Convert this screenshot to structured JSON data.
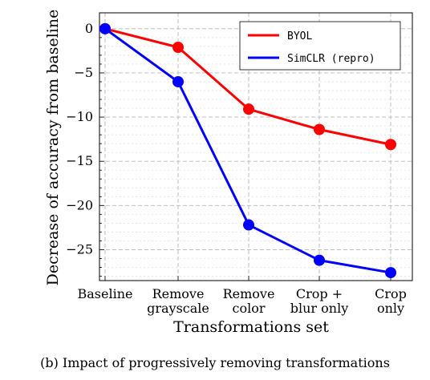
{
  "chart_data": {
    "type": "line",
    "categories": [
      "Baseline",
      "Remove grayscale",
      "Remove color",
      "Crop + blur only",
      "Crop only"
    ],
    "category_lines": [
      [
        "Baseline"
      ],
      [
        "Remove",
        "grayscale"
      ],
      [
        "Remove",
        "color"
      ],
      [
        "Crop +",
        "blur only"
      ],
      [
        "Crop",
        "only"
      ]
    ],
    "series": [
      {
        "name": "BYOL",
        "values": [
          0,
          -2.1,
          -9.1,
          -11.4,
          -13.1
        ],
        "color": "#ff0000"
      },
      {
        "name": "SimCLR (repro)",
        "values": [
          0,
          -6.0,
          -22.2,
          -26.2,
          -27.6
        ],
        "color": "#0000ff"
      }
    ],
    "xlabel": "Transformations set",
    "ylabel": "Decrease of accuracy from baseline",
    "ylim": [
      -28.5,
      1.8
    ],
    "yticks": [
      0,
      -5,
      -10,
      -15,
      -20,
      -25
    ],
    "ytick_labels": [
      "0",
      "−5",
      "−10",
      "−15",
      "−20",
      "−25"
    ],
    "grid": true,
    "legend_position": "top-right",
    "caption": "(b) Impact of progressively removing transformations"
  }
}
